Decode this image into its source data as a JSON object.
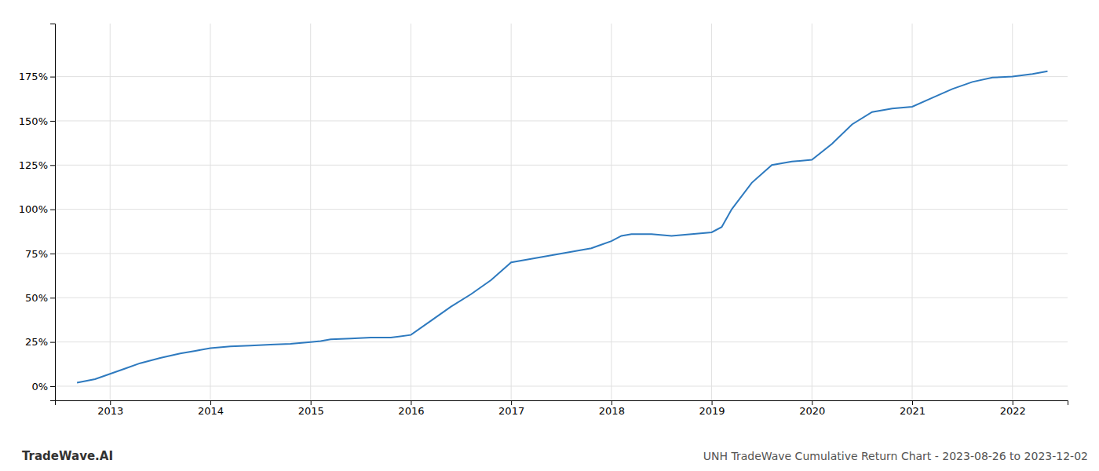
{
  "chart_data": {
    "type": "line",
    "title": "UNH TradeWave Cumulative Return Chart - 2023-08-26 to 2023-12-02",
    "annotations": [
      {
        "text": "TradeWave.AI"
      }
    ],
    "color": "#2e7abf",
    "grid": true,
    "x": [
      2012.67,
      2012.85,
      2013.0,
      2013.15,
      2013.3,
      2013.5,
      2013.7,
      2013.85,
      2014.0,
      2014.2,
      2014.4,
      2014.6,
      2014.8,
      2015.0,
      2015.1,
      2015.2,
      2015.4,
      2015.6,
      2015.8,
      2016.0,
      2016.2,
      2016.4,
      2016.6,
      2016.8,
      2017.0,
      2017.2,
      2017.4,
      2017.6,
      2017.8,
      2018.0,
      2018.1,
      2018.2,
      2018.4,
      2018.6,
      2018.8,
      2019.0,
      2019.1,
      2019.2,
      2019.4,
      2019.6,
      2019.8,
      2020.0,
      2020.2,
      2020.4,
      2020.6,
      2020.8,
      2021.0,
      2021.2,
      2021.4,
      2021.6,
      2021.8,
      2022.0,
      2022.2,
      2022.35
    ],
    "values": [
      2.0,
      4.0,
      7.0,
      10.0,
      13.0,
      16.0,
      18.5,
      20.0,
      21.5,
      22.5,
      23.0,
      23.5,
      24.0,
      25.0,
      25.5,
      26.5,
      27.0,
      27.5,
      27.5,
      29.0,
      37.0,
      45.0,
      52.0,
      60.0,
      70.0,
      72.0,
      74.0,
      76.0,
      78.0,
      82.0,
      85.0,
      86.0,
      86.0,
      85.0,
      86.0,
      87.0,
      90.0,
      100.0,
      115.0,
      125.0,
      127.0,
      128.0,
      137.0,
      148.0,
      155.0,
      157.0,
      158.0,
      163.0,
      168.0,
      172.0,
      174.5,
      175.0,
      176.5,
      178.0
    ],
    "xlim": [
      2012.45,
      2022.55
    ],
    "xticks": [
      2013,
      2014,
      2015,
      2016,
      2017,
      2018,
      2019,
      2020,
      2021,
      2022
    ],
    "ylim": [
      -8,
      205
    ],
    "yticks": [
      {
        "value": 0,
        "label": "0%"
      },
      {
        "value": 25,
        "label": "25%"
      },
      {
        "value": 50,
        "label": "50%"
      },
      {
        "value": 75,
        "label": "75%"
      },
      {
        "value": 100,
        "label": "100%"
      },
      {
        "value": 125,
        "label": "125%"
      },
      {
        "value": 150,
        "label": "150%"
      },
      {
        "value": 175,
        "label": "175%"
      }
    ]
  }
}
